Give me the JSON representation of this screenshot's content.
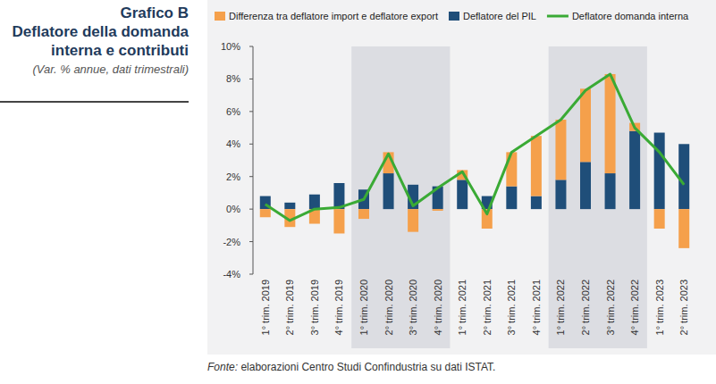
{
  "chart_data": {
    "type": "bar",
    "chart_label": "Grafico B",
    "title": "Deflatore della domanda interna e contributi",
    "subtitle": "(Var. % annue, dati trimestrali)",
    "source_prefix": "Fonte:",
    "source": "elaborazioni Centro Studi Confindustria su dati ISTAT.",
    "categories": [
      "1° trim. 2019",
      "2° trim. 2019",
      "3° trim. 2019",
      "4° trim. 2019",
      "1° trim. 2020",
      "2° trim. 2020",
      "3° trim. 2020",
      "4° trim. 2020",
      "1° trim. 2021",
      "2° trim. 2021",
      "3° trim. 2021",
      "4° trim. 2021",
      "1° trim. 2022",
      "2° trim. 2022",
      "3° trim. 2022",
      "4° trim. 2022",
      "1° trim. 2023",
      "2° trim. 2023"
    ],
    "series": [
      {
        "name": "Differenza tra deflatore import e deflatore export",
        "type": "bar",
        "color": "#f5a04b",
        "values": [
          -0.5,
          -1.1,
          -0.9,
          -1.5,
          -0.6,
          1.3,
          -1.4,
          -0.1,
          0.6,
          -1.2,
          2.1,
          3.7,
          3.7,
          4.5,
          6.1,
          0.5,
          -1.2,
          -2.4
        ]
      },
      {
        "name": "Deflatore del PIL",
        "type": "bar",
        "color": "#1f4e79",
        "values": [
          0.8,
          0.4,
          0.9,
          1.6,
          1.2,
          2.2,
          1.5,
          1.4,
          1.8,
          0.8,
          1.4,
          0.8,
          1.8,
          2.9,
          2.2,
          4.8,
          4.7,
          4.0
        ]
      },
      {
        "name": "Deflatore domanda interna",
        "type": "line",
        "color": "#3aaa35",
        "values": [
          0.3,
          -0.7,
          0.0,
          0.1,
          0.6,
          3.4,
          0.2,
          1.3,
          2.3,
          -0.3,
          3.5,
          4.5,
          5.5,
          7.3,
          8.3,
          5.0,
          3.5,
          1.5
        ]
      }
    ],
    "stacked": true,
    "legend": "top",
    "grid": false,
    "ylim": [
      -4,
      10
    ],
    "yticks": [
      {
        "value": -4,
        "label": "-4%"
      },
      {
        "value": -2,
        "label": "-2%"
      },
      {
        "value": 0,
        "label": "0%"
      },
      {
        "value": 2,
        "label": "2%"
      },
      {
        "value": 4,
        "label": "4%"
      },
      {
        "value": 6,
        "label": "6%"
      },
      {
        "value": 8,
        "label": "8%"
      },
      {
        "value": 10,
        "label": "10%"
      }
    ]
  }
}
